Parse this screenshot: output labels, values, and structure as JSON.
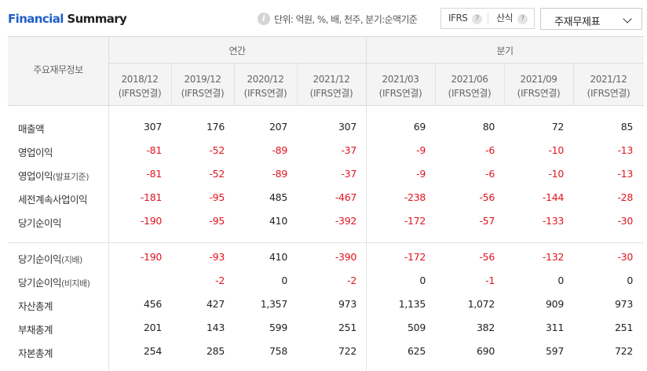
{
  "title": {
    "part1": "Financial",
    "part2": "Summary"
  },
  "unit_info": {
    "icon": "info-icon",
    "text": "단위: 억원, %, 배, 천주, 분기:순액기준"
  },
  "toggles": [
    {
      "label": "IFRS",
      "help": "?"
    },
    {
      "label": "산식",
      "help": "?"
    }
  ],
  "statement_select": {
    "value": "주재무제표"
  },
  "table": {
    "label_header": "주요재무정보",
    "groups": [
      {
        "label": "연간"
      },
      {
        "label": "분기"
      }
    ],
    "periods": [
      {
        "date": "2018/12",
        "basis": "(IFRS연결)"
      },
      {
        "date": "2019/12",
        "basis": "(IFRS연결)"
      },
      {
        "date": "2020/12",
        "basis": "(IFRS연결)"
      },
      {
        "date": "2021/12",
        "basis": "(IFRS연결)"
      },
      {
        "date": "2021/03",
        "basis": "(IFRS연결)"
      },
      {
        "date": "2021/06",
        "basis": "(IFRS연결)"
      },
      {
        "date": "2021/09",
        "basis": "(IFRS연결)"
      },
      {
        "date": "2021/12",
        "basis": "(IFRS연결)"
      }
    ],
    "rows": [
      {
        "label": "매출액",
        "sub": "",
        "values": [
          "307",
          "176",
          "207",
          "307",
          "69",
          "80",
          "72",
          "85"
        ]
      },
      {
        "label": "영업이익",
        "sub": "",
        "values": [
          "-81",
          "-52",
          "-89",
          "-37",
          "-9",
          "-6",
          "-10",
          "-13"
        ]
      },
      {
        "label": "영업이익",
        "sub": "(발표기준)",
        "values": [
          "-81",
          "-52",
          "-89",
          "-37",
          "-9",
          "-6",
          "-10",
          "-13"
        ]
      },
      {
        "label": "세전계속사업이익",
        "sub": "",
        "values": [
          "-181",
          "-95",
          "485",
          "-467",
          "-238",
          "-56",
          "-144",
          "-28"
        ]
      },
      {
        "label": "당기순이익",
        "sub": "",
        "values": [
          "-190",
          "-95",
          "410",
          "-392",
          "-172",
          "-57",
          "-133",
          "-30"
        ]
      },
      {
        "label": "당기순이익",
        "sub": "(지배)",
        "values": [
          "-190",
          "-93",
          "410",
          "-390",
          "-172",
          "-56",
          "-132",
          "-30"
        ]
      },
      {
        "label": "당기순이익",
        "sub": "(비지배)",
        "values": [
          "",
          "-2",
          "0",
          "-2",
          "0",
          "-1",
          "0",
          "0"
        ]
      },
      {
        "label": "자산총계",
        "sub": "",
        "values": [
          "456",
          "427",
          "1,357",
          "973",
          "1,135",
          "1,072",
          "909",
          "973"
        ]
      },
      {
        "label": "부채총계",
        "sub": "",
        "values": [
          "201",
          "143",
          "599",
          "251",
          "509",
          "382",
          "311",
          "251"
        ]
      },
      {
        "label": "자본총계",
        "sub": "",
        "values": [
          "254",
          "285",
          "758",
          "722",
          "625",
          "690",
          "597",
          "722"
        ]
      }
    ]
  },
  "colors": {
    "title_accent": "#1f5ec8",
    "negative": "#e1141e",
    "header_bg": "#f4f4f4"
  }
}
